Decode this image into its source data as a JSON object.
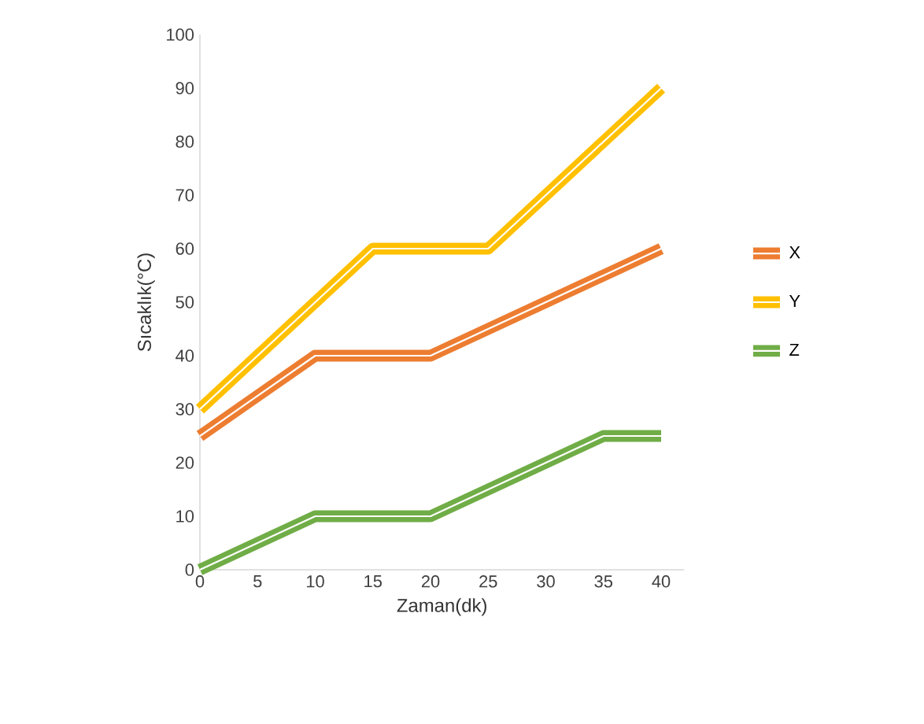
{
  "chart_data": {
    "type": "line",
    "xlabel": "Zaman(dk)",
    "ylabel": "Sıcaklık(°C)",
    "xlim": [
      0,
      42
    ],
    "xticks": [
      0,
      5,
      10,
      15,
      20,
      25,
      30,
      35,
      40
    ],
    "ylim": [
      0,
      100
    ],
    "yticks": [
      0,
      10,
      20,
      30,
      40,
      50,
      60,
      70,
      80,
      90,
      100
    ],
    "legend": "right",
    "marker": "none",
    "line_style": "solid",
    "series": [
      {
        "name": "X",
        "color": "#ed7d31",
        "x": [
          0,
          10,
          20,
          40
        ],
        "values": [
          25,
          40,
          40,
          60
        ]
      },
      {
        "name": "Y",
        "color": "#ffc000",
        "x": [
          0,
          15,
          25,
          40
        ],
        "values": [
          30,
          60,
          60,
          90
        ]
      },
      {
        "name": "Z",
        "color": "#70ad47",
        "x": [
          0,
          10,
          20,
          35,
          40
        ],
        "values": [
          0,
          10,
          10,
          25,
          25
        ]
      }
    ]
  }
}
